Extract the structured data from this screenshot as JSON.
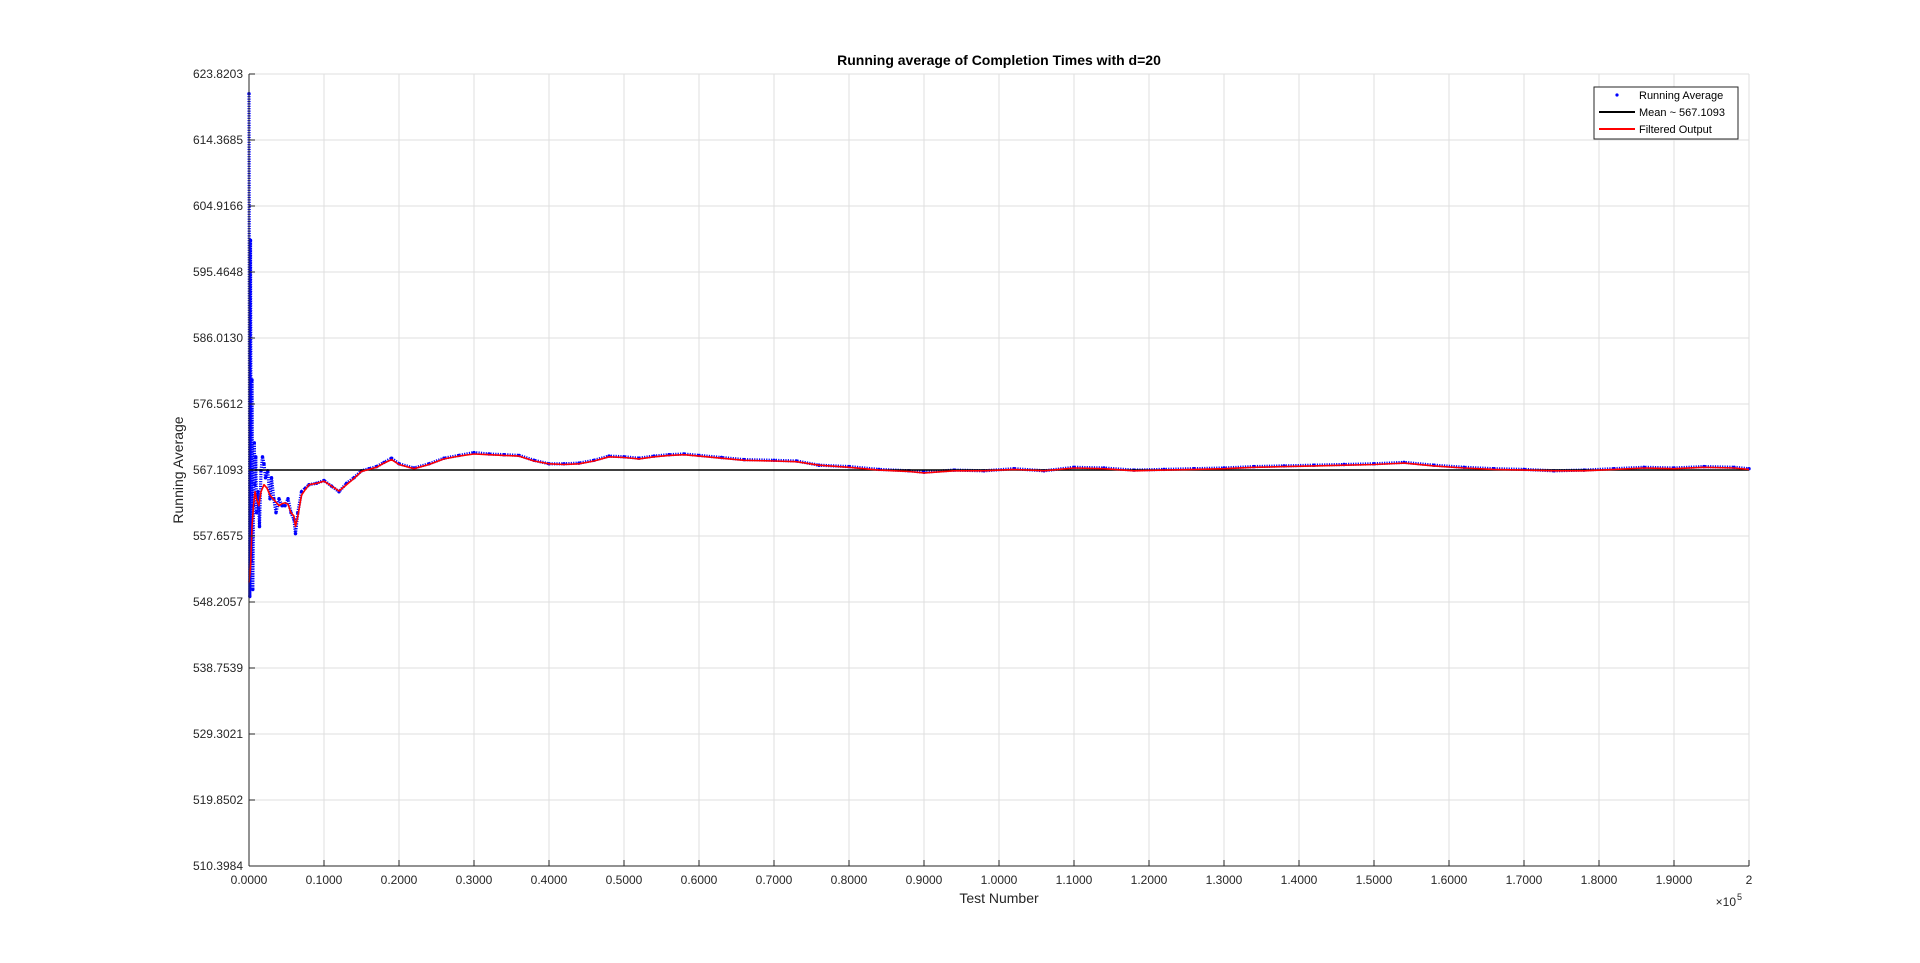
{
  "chart_data": {
    "type": "line",
    "title": "Running average of Completion Times with d=20",
    "xlabel": "Test Number",
    "ylabel": "Running Average",
    "x_exponent_label": "×10",
    "x_exponent_power": "5",
    "xlim": [
      0,
      2
    ],
    "ylim": [
      510.3984,
      623.8203
    ],
    "x_tick_labels": [
      "0.0000",
      "0.1000",
      "0.2000",
      "0.3000",
      "0.4000",
      "0.5000",
      "0.6000",
      "0.7000",
      "0.8000",
      "0.9000",
      "1.0000",
      "1.1000",
      "1.2000",
      "1.3000",
      "1.4000",
      "1.5000",
      "1.6000",
      "1.7000",
      "1.8000",
      "1.9000",
      "2"
    ],
    "y_tick_labels": [
      "510.3984",
      "519.8502",
      "529.3021",
      "538.7539",
      "548.2057",
      "557.6575",
      "567.1093",
      "576.5612",
      "586.0130",
      "595.4648",
      "604.9166",
      "614.3685",
      "623.8203"
    ],
    "grid": true,
    "legend_position": "top-right",
    "colors": {
      "running": "#0000ff",
      "mean": "#000000",
      "filtered": "#ff0000"
    },
    "series": [
      {
        "name": "Running Average",
        "style": "dots",
        "x": [
          0.0,
          0.001,
          0.002,
          0.003,
          0.004,
          0.005,
          0.006,
          0.007,
          0.008,
          0.009,
          0.01,
          0.012,
          0.014,
          0.016,
          0.018,
          0.02,
          0.022,
          0.025,
          0.028,
          0.03,
          0.033,
          0.036,
          0.04,
          0.044,
          0.048,
          0.052,
          0.056,
          0.06,
          0.062,
          0.065,
          0.07,
          0.075,
          0.08,
          0.09,
          0.1,
          0.11,
          0.12,
          0.13,
          0.14,
          0.15,
          0.16,
          0.17,
          0.18,
          0.19,
          0.2,
          0.22,
          0.24,
          0.26,
          0.28,
          0.3,
          0.32,
          0.34,
          0.36,
          0.38,
          0.4,
          0.42,
          0.44,
          0.46,
          0.48,
          0.5,
          0.52,
          0.54,
          0.56,
          0.58,
          0.6,
          0.63,
          0.66,
          0.7,
          0.73,
          0.76,
          0.8,
          0.84,
          0.88,
          0.9,
          0.94,
          0.98,
          1.02,
          1.06,
          1.1,
          1.14,
          1.18,
          1.22,
          1.26,
          1.3,
          1.34,
          1.38,
          1.42,
          1.46,
          1.5,
          1.54,
          1.58,
          1.62,
          1.66,
          1.7,
          1.74,
          1.78,
          1.82,
          1.86,
          1.9,
          1.94,
          1.98,
          2.0
        ],
        "values": [
          621.0,
          549.0,
          600.0,
          554.0,
          580.0,
          550.0,
          562.0,
          571.0,
          565.0,
          569.0,
          561.0,
          564.0,
          559.0,
          567.0,
          569.0,
          568.0,
          566.0,
          567.0,
          563.0,
          566.0,
          563.0,
          561.0,
          563.0,
          562.0,
          562.0,
          563.0,
          561.0,
          560.0,
          558.0,
          561.0,
          564.0,
          564.5,
          565.0,
          565.2,
          565.6,
          564.8,
          564.0,
          565.2,
          566.0,
          567.0,
          567.3,
          567.6,
          568.2,
          568.8,
          568.0,
          567.4,
          568.0,
          568.8,
          569.2,
          569.6,
          569.4,
          569.3,
          569.2,
          568.5,
          568.0,
          568.0,
          568.1,
          568.5,
          569.1,
          569.0,
          568.8,
          569.1,
          569.3,
          569.4,
          569.2,
          568.9,
          568.6,
          568.5,
          568.4,
          567.8,
          567.6,
          567.2,
          567.0,
          566.8,
          567.1,
          567.0,
          567.3,
          567.0,
          567.5,
          567.4,
          567.1,
          567.2,
          567.3,
          567.4,
          567.6,
          567.7,
          567.8,
          567.9,
          568.0,
          568.2,
          567.8,
          567.5,
          567.3,
          567.2,
          567.0,
          567.1,
          567.3,
          567.5,
          567.4,
          567.6,
          567.5,
          567.3
        ]
      },
      {
        "name": "Mean ~ 567.1093",
        "style": "line",
        "x": [
          0,
          2
        ],
        "values": [
          567.1093,
          567.1093
        ]
      },
      {
        "name": "Filtered Output",
        "style": "line",
        "x": [
          0.0,
          0.002,
          0.004,
          0.006,
          0.008,
          0.01,
          0.013,
          0.016,
          0.02,
          0.024,
          0.028,
          0.032,
          0.036,
          0.04,
          0.044,
          0.048,
          0.052,
          0.056,
          0.06,
          0.062,
          0.065,
          0.07,
          0.075,
          0.08,
          0.09,
          0.1,
          0.11,
          0.12,
          0.13,
          0.14,
          0.15,
          0.16,
          0.17,
          0.18,
          0.19,
          0.2,
          0.22,
          0.24,
          0.26,
          0.28,
          0.3,
          0.32,
          0.34,
          0.36,
          0.38,
          0.4,
          0.42,
          0.44,
          0.46,
          0.48,
          0.5,
          0.52,
          0.54,
          0.56,
          0.58,
          0.6,
          0.63,
          0.66,
          0.7,
          0.73,
          0.76,
          0.8,
          0.84,
          0.88,
          0.9,
          0.94,
          0.98,
          1.02,
          1.06,
          1.1,
          1.14,
          1.18,
          1.22,
          1.26,
          1.3,
          1.34,
          1.38,
          1.42,
          1.46,
          1.5,
          1.54,
          1.58,
          1.62,
          1.66,
          1.7,
          1.74,
          1.78,
          1.82,
          1.86,
          1.9,
          1.94,
          1.98,
          2.0
        ],
        "values": [
          551.0,
          553.0,
          559.0,
          562.0,
          564.0,
          563.0,
          562.0,
          564.0,
          565.0,
          564.5,
          563.5,
          563.0,
          562.5,
          562.0,
          562.3,
          562.4,
          562.2,
          561.0,
          560.5,
          559.0,
          560.5,
          563.5,
          564.3,
          565.0,
          565.2,
          565.5,
          564.8,
          564.1,
          565.0,
          565.9,
          566.9,
          567.2,
          567.5,
          568.1,
          568.6,
          567.9,
          567.3,
          567.9,
          568.7,
          569.1,
          569.4,
          569.3,
          569.2,
          569.1,
          568.4,
          568.0,
          567.9,
          568.0,
          568.4,
          569.0,
          568.9,
          568.7,
          569.0,
          569.2,
          569.3,
          569.1,
          568.8,
          568.5,
          568.4,
          568.3,
          567.8,
          567.5,
          567.1,
          566.9,
          566.7,
          567.0,
          567.0,
          567.2,
          567.0,
          567.4,
          567.3,
          567.0,
          567.1,
          567.2,
          567.3,
          567.5,
          567.6,
          567.7,
          567.8,
          567.9,
          568.1,
          567.7,
          567.4,
          567.2,
          567.1,
          567.0,
          567.0,
          567.2,
          567.4,
          567.3,
          567.5,
          567.4,
          567.2
        ]
      }
    ]
  }
}
